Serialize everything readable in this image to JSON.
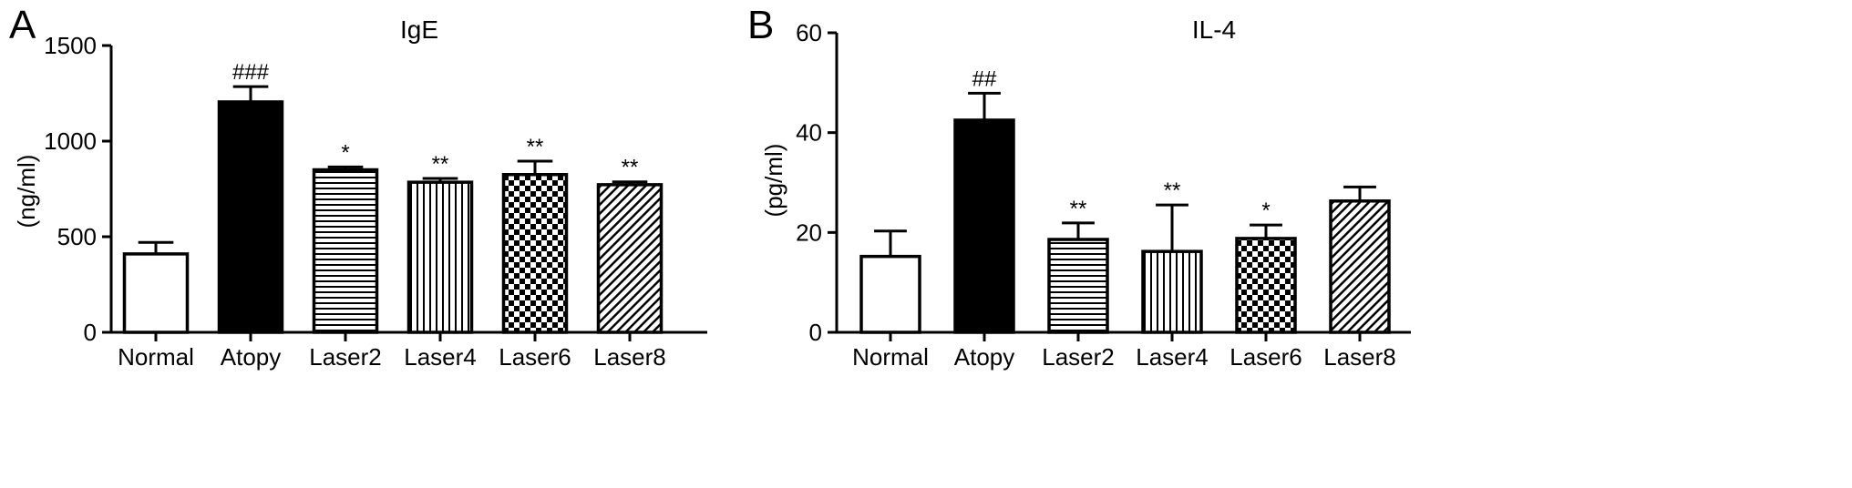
{
  "panels": [
    {
      "letter": "A"
    },
    {
      "letter": "B"
    }
  ],
  "chart_data": [
    {
      "type": "bar",
      "title": "IgE",
      "ylabel": "(ng/ml)",
      "xlabel": "",
      "categories": [
        "Normal",
        "Atopy",
        "Laser2",
        "Laser4",
        "Laser6",
        "Laser8"
      ],
      "values": [
        410,
        1205,
        850,
        785,
        825,
        772
      ],
      "errors": [
        60,
        80,
        15,
        20,
        70,
        15
      ],
      "annotations": [
        "",
        "###",
        "*",
        "**",
        "**",
        "**"
      ],
      "ylim": [
        0,
        1500
      ],
      "yticks": [
        0,
        500,
        1000,
        1500
      ],
      "legend": "none",
      "grid": false
    },
    {
      "type": "bar",
      "title": "IL-4",
      "ylabel": "(pg/ml)",
      "xlabel": "",
      "categories": [
        "Normal",
        "Atopy",
        "Laser2",
        "Laser4",
        "Laser6",
        "Laser8"
      ],
      "values": [
        15.2,
        42.5,
        18.6,
        16.2,
        18.8,
        26.3
      ],
      "errors": [
        5.1,
        5.4,
        3.3,
        9.3,
        2.7,
        2.8
      ],
      "annotations": [
        "",
        "##",
        "**",
        "**",
        "*",
        ""
      ],
      "ylim": [
        0,
        60
      ],
      "yticks": [
        0,
        20,
        40,
        60
      ],
      "legend": "none",
      "grid": false
    }
  ],
  "bar_fills": [
    "white",
    "black",
    "horizontal-lines",
    "vertical-lines",
    "checkerboard",
    "diagonal-lines"
  ],
  "colors": {
    "ink": "#000000",
    "background": "#ffffff"
  }
}
